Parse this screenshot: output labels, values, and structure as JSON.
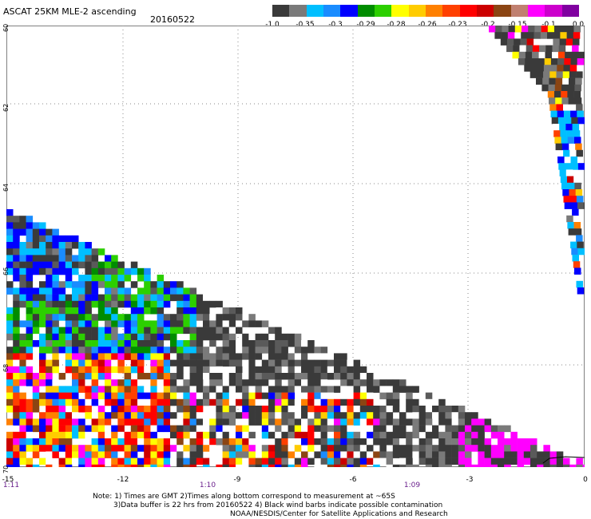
{
  "header": {
    "title": "ASCAT 25KM MLE-2 ascending",
    "date": "20160522"
  },
  "colorbar": {
    "colors": [
      "#3a3a3a",
      "#7a7a7a",
      "#00bfff",
      "#1a8cff",
      "#0000ff",
      "#008c00",
      "#2ccf00",
      "#ffff00",
      "#ffcc00",
      "#ff8000",
      "#ff4000",
      "#ff0000",
      "#cc0000",
      "#8b4513",
      "#c08070",
      "#ff00ff",
      "#cc00cc",
      "#8000a0"
    ],
    "labels": [
      "-1.0",
      "-0.35",
      "-0.3",
      "-0.29",
      "-0.28",
      "-0.26",
      "-0.23",
      "-0.2",
      "-0.15",
      "-0.1",
      "0.0"
    ]
  },
  "axes": {
    "lon_labels": [
      "-15",
      "-12",
      "-9",
      "-6",
      "-3",
      "0"
    ],
    "lat_labels": [
      "60",
      "62",
      "64",
      "66",
      "68",
      "70"
    ],
    "time_labels": [
      "1:11",
      "1:10",
      "1:09"
    ]
  },
  "notes": {
    "line1": "Note: 1) Times are GMT 2)Times along bottom correspond to measurement at ~65S",
    "line2": "3)Data buffer is 22 hrs from 20160522 4) Black wind barbs indicate possible contamination",
    "line3": "NOAA/NESDIS/Center for Satellite Applications and Research"
  }
}
